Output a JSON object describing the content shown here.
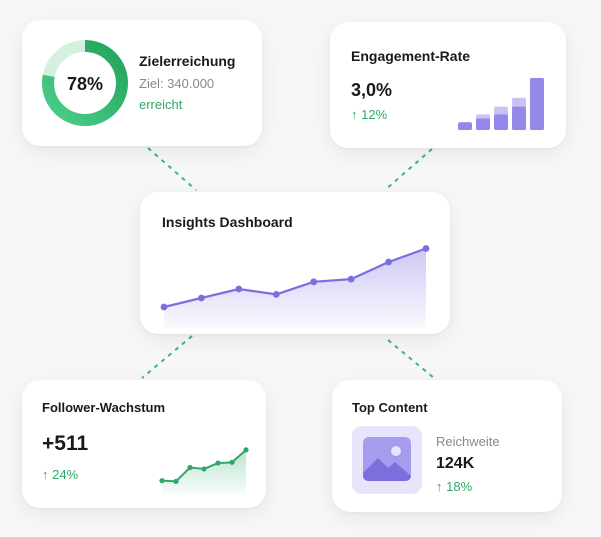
{
  "colors": {
    "green": "#2fa865",
    "purple": "#7b6fe0",
    "purple_light": "#c9c3f4",
    "lavender_bg": "#e7e4fb"
  },
  "goal": {
    "title": "Zielerreichung",
    "percent_label": "78%",
    "percent_value": 0.78,
    "target": "Ziel: 340.000",
    "status": "erreicht"
  },
  "engagement": {
    "title": "Engagement-Rate",
    "value": "3,0%",
    "change": "↑ 12%",
    "bars": [
      {
        "front": 0.15,
        "back": 0.15
      },
      {
        "front": 0.22,
        "back": 0.3
      },
      {
        "front": 0.3,
        "back": 0.45
      },
      {
        "front": 0.45,
        "back": 0.62
      },
      {
        "front": 1.0,
        "back": 1.0
      }
    ]
  },
  "dashboard": {
    "title": "Insights Dashboard",
    "icon": "line-chart-icon",
    "chart_data": {
      "type": "area",
      "values": [
        1,
        2,
        3,
        2.4,
        3.8,
        4.1,
        6,
        7.5
      ],
      "ylim": [
        0,
        8
      ],
      "grid": false
    }
  },
  "followers": {
    "title": "Follower-Wachstum",
    "value": "+511",
    "change": "↑ 24%",
    "chart_data": {
      "type": "area",
      "values": [
        1,
        0.9,
        2.8,
        2.6,
        3.4,
        3.5,
        5.2
      ],
      "ylim": [
        0,
        6
      ],
      "grid": false
    }
  },
  "top_content": {
    "title": "Top Content",
    "thumbnail_icon": "image-icon",
    "reach_label": "Reichweite",
    "reach_value": "124K",
    "change": "↑ 18%"
  }
}
